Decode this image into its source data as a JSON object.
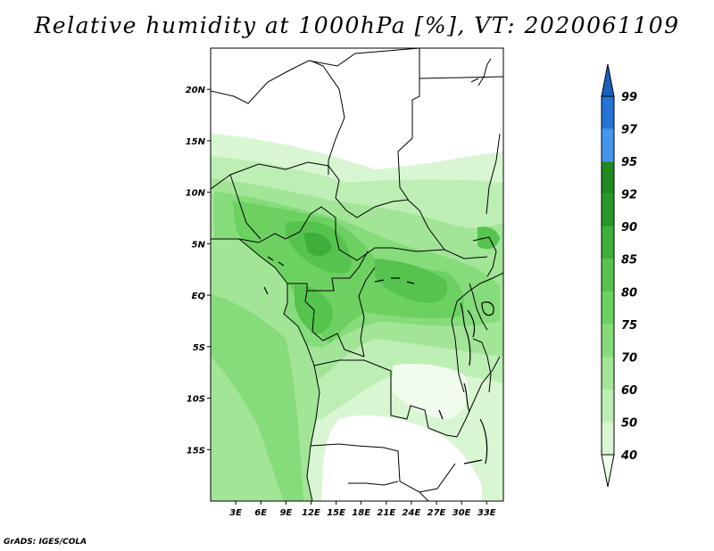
{
  "title": "Relative humidity at 1000hPa [%], VT: 2020061109",
  "credit": "GrADS: IGES/COLA",
  "map": {
    "lon_range": [
      0,
      35
    ],
    "lat_range": [
      -20,
      24
    ],
    "lat_ticks": [
      {
        "value": 20,
        "label": "20N"
      },
      {
        "value": 15,
        "label": "15N"
      },
      {
        "value": 10,
        "label": "10N"
      },
      {
        "value": 5,
        "label": "5N"
      },
      {
        "value": 0,
        "label": "EQ"
      },
      {
        "value": -5,
        "label": "5S"
      },
      {
        "value": -10,
        "label": "10S"
      },
      {
        "value": -15,
        "label": "15S"
      }
    ],
    "lon_ticks": [
      {
        "value": 3,
        "label": "3E"
      },
      {
        "value": 6,
        "label": "6E"
      },
      {
        "value": 9,
        "label": "9E"
      },
      {
        "value": 12,
        "label": "12E"
      },
      {
        "value": 15,
        "label": "15E"
      },
      {
        "value": 18,
        "label": "18E"
      },
      {
        "value": 21,
        "label": "21E"
      },
      {
        "value": 24,
        "label": "24E"
      },
      {
        "value": 27,
        "label": "27E"
      },
      {
        "value": 30,
        "label": "30E"
      },
      {
        "value": 33,
        "label": "33E"
      }
    ]
  },
  "colorbar": {
    "levels": [
      40,
      50,
      60,
      70,
      75,
      80,
      85,
      90,
      92,
      95,
      97,
      99
    ],
    "labels": [
      "40",
      "50",
      "60",
      "70",
      "75",
      "80",
      "85",
      "90",
      "92",
      "95",
      "97",
      "99"
    ],
    "colors": [
      "#f0fcee",
      "#d8f6d2",
      "#bdeeb4",
      "#a2e597",
      "#86db7a",
      "#6dd162",
      "#55c34d",
      "#3daf3a",
      "#27982a",
      "#1f8a20",
      "#4396ec",
      "#2574d6",
      "#1b5fbd"
    ]
  }
}
